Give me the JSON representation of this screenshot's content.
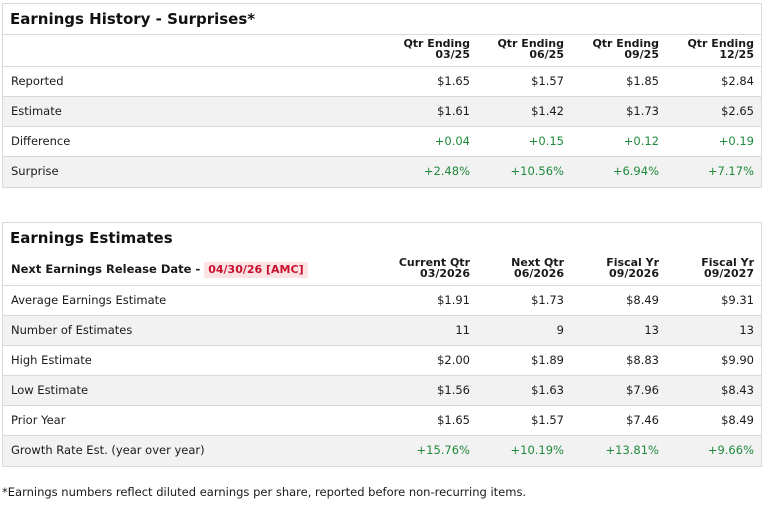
{
  "surprises": {
    "title": "Earnings History - Surprises*",
    "columns": [
      {
        "line1": "Qtr Ending",
        "line2": "03/25"
      },
      {
        "line1": "Qtr Ending",
        "line2": "06/25"
      },
      {
        "line1": "Qtr Ending",
        "line2": "09/25"
      },
      {
        "line1": "Qtr Ending",
        "line2": "12/25"
      }
    ],
    "rows": [
      {
        "label": "Reported",
        "values": [
          "$1.65",
          "$1.57",
          "$1.85",
          "$2.84"
        ]
      },
      {
        "label": "Estimate",
        "values": [
          "$1.61",
          "$1.42",
          "$1.73",
          "$2.65"
        ]
      },
      {
        "label": "Difference",
        "values": [
          "+0.04",
          "+0.15",
          "+0.12",
          "+0.19"
        ]
      },
      {
        "label": "Surprise",
        "values": [
          "+2.48%",
          "+10.56%",
          "+6.94%",
          "+7.17%"
        ]
      }
    ]
  },
  "estimates": {
    "title": "Earnings Estimates",
    "next_release_label": "Next Earnings Release Date -",
    "next_release_date": "04/30/26 [AMC]",
    "columns": [
      {
        "line1": "Current Qtr",
        "line2": "03/2026"
      },
      {
        "line1": "Next Qtr",
        "line2": "06/2026"
      },
      {
        "line1": "Fiscal Yr",
        "line2": "09/2026"
      },
      {
        "line1": "Fiscal Yr",
        "line2": "09/2027"
      }
    ],
    "rows": [
      {
        "label": "Average Earnings Estimate",
        "values": [
          "$1.91",
          "$1.73",
          "$8.49",
          "$9.31"
        ]
      },
      {
        "label": "Number of Estimates",
        "values": [
          "11",
          "9",
          "13",
          "13"
        ]
      },
      {
        "label": "High Estimate",
        "values": [
          "$2.00",
          "$1.89",
          "$8.83",
          "$9.90"
        ]
      },
      {
        "label": "Low Estimate",
        "values": [
          "$1.56",
          "$1.63",
          "$7.96",
          "$8.43"
        ]
      },
      {
        "label": "Prior Year",
        "values": [
          "$1.65",
          "$1.57",
          "$7.46",
          "$8.49"
        ]
      },
      {
        "label": "Growth Rate Est. (year over year)",
        "values": [
          "+15.76%",
          "+10.19%",
          "+13.81%",
          "+9.66%"
        ]
      }
    ]
  },
  "footnote": "*Earnings numbers reflect diluted earnings per share, reported before non-recurring items.",
  "colors": {
    "positive": "#1f8a3b",
    "badge_text": "#c8102e",
    "badge_bg": "#fbe3e3"
  }
}
